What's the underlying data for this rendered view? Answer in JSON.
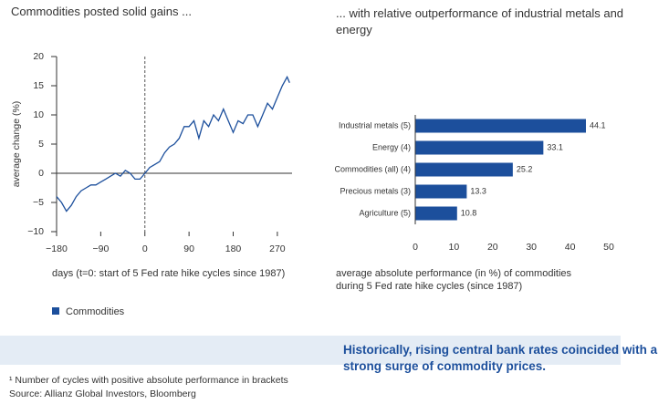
{
  "chart_data": [
    {
      "type": "line",
      "title": "Commodities posted solid gains ...",
      "ylabel": "average change (%)",
      "xlabel": "days (t=0: start of 5 Fed rate hike cycles since 1987)",
      "x": [
        -180,
        -170,
        -160,
        -150,
        -140,
        -130,
        -120,
        -110,
        -100,
        -90,
        -80,
        -70,
        -60,
        -50,
        -40,
        -30,
        -20,
        -10,
        0,
        10,
        20,
        30,
        40,
        50,
        60,
        70,
        80,
        90,
        100,
        110,
        120,
        130,
        140,
        150,
        160,
        170,
        180,
        190,
        200,
        210,
        220,
        230,
        240,
        250,
        260,
        270,
        280,
        290,
        295
      ],
      "series": [
        {
          "name": "Commodities",
          "color": "#1c4f9c",
          "values": [
            -4,
            -5,
            -6.5,
            -5.5,
            -4,
            -3,
            -2.5,
            -2,
            -2,
            -1.5,
            -1,
            -0.5,
            0,
            -0.5,
            0.5,
            0,
            -1,
            -1,
            0,
            1,
            1.5,
            2,
            3.5,
            4.5,
            5,
            6,
            8,
            8,
            9,
            6,
            9,
            8,
            10,
            9,
            11,
            9,
            7,
            9,
            8.5,
            10,
            10,
            8,
            10,
            12,
            11,
            13,
            15,
            16.5,
            15.5
          ]
        }
      ],
      "xlim": [
        -180,
        300
      ],
      "xticks": [
        {
          "value": -180,
          "label": "−180"
        },
        {
          "value": -90,
          "label": "−90"
        },
        0,
        90,
        180,
        270
      ],
      "ylim": [
        -10,
        20
      ],
      "yticks": [
        {
          "value": -10,
          "label": "−10"
        },
        {
          "value": -5,
          "label": "−5"
        },
        0,
        5,
        10,
        15,
        20
      ]
    },
    {
      "type": "hbar",
      "title": "... with relative outperformance of industrial metals and energy",
      "xlabel": "average absolute performance (in %) of commodities during 5 Fed rate hike cycles (since 1987)",
      "categories": [
        "Industrial metals (5)",
        "Energy (4)",
        "Commodities (all) (4)",
        "Precious metals (3)",
        "Agriculture (5)"
      ],
      "values": [
        44.1,
        33.1,
        25.2,
        13.3,
        10.8
      ],
      "color": "#1c4f9c",
      "xlim": [
        0,
        50
      ],
      "xticks": [
        0,
        10,
        20,
        30,
        40,
        50
      ]
    }
  ],
  "banner": "Historically, rising central bank rates coincided with a strong surge of commodity prices.",
  "footnote": "¹ Number of cycles with positive absolute performance in brackets",
  "source": "Source: Allianz Global Investors, Bloomberg"
}
